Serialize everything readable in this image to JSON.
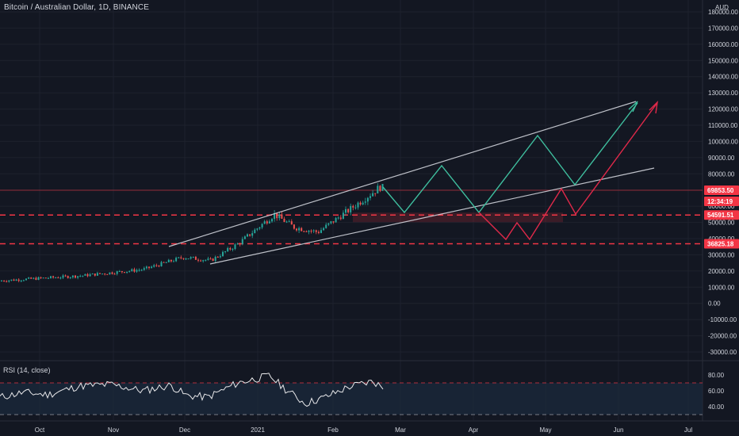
{
  "symbol_title": "Bitcoin / Australian Dollar, 1D, BINANCE",
  "currency": "AUD",
  "price_axis": {
    "ticks": [
      "180000.00",
      "170000.00",
      "160000.00",
      "150000.00",
      "140000.00",
      "130000.00",
      "120000.00",
      "110000.00",
      "100000.00",
      "90000.00",
      "80000.00",
      "70000.00",
      "60000.00",
      "50000.00",
      "40000.00",
      "30000.00",
      "20000.00",
      "10000.00",
      "0.00",
      "-10000.00",
      "-20000.00",
      "-30000.00"
    ],
    "tick_values": [
      180000,
      170000,
      160000,
      150000,
      140000,
      130000,
      120000,
      110000,
      100000,
      90000,
      80000,
      70000,
      60000,
      50000,
      40000,
      30000,
      20000,
      10000,
      0,
      -10000,
      -20000,
      -30000
    ],
    "range": [
      -32000,
      186000
    ]
  },
  "price_labels": {
    "last": "69853.50",
    "countdown": "12:34:19",
    "level_upper": "54591.51",
    "level_lower": "36825.18"
  },
  "levels": {
    "last": 69853.5,
    "upper": 54591.51,
    "lower": 36825.18
  },
  "time_axis": {
    "labels": [
      "Oct",
      "Nov",
      "Dec",
      "2021",
      "Feb",
      "Mar",
      "Apr",
      "May",
      "Jun",
      "Jul"
    ]
  },
  "rsi": {
    "label": "RSI (14, close)",
    "ticks": [
      "80.00",
      "60.00",
      "40.00"
    ],
    "tick_values": [
      80,
      60,
      40
    ],
    "upper_band": 70,
    "lower_band": 30
  },
  "colors": {
    "background": "#131722",
    "grid": "#1e222d",
    "text": "#d1d4dc",
    "bull": "#26a69a",
    "bear": "#ef5350",
    "level_red": "#f23645",
    "projection_green": "#3fbf9f",
    "projection_red": "#e0294a",
    "channel": "#d1d4dc",
    "rsi_band": "#1b2a3c"
  }
}
